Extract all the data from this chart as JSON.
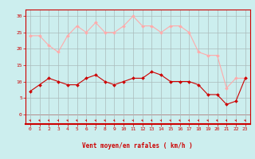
{
  "hours": [
    0,
    1,
    2,
    3,
    4,
    5,
    6,
    7,
    8,
    9,
    10,
    11,
    12,
    13,
    14,
    15,
    16,
    17,
    18,
    19,
    20,
    21,
    22,
    23
  ],
  "wind_avg": [
    7,
    9,
    11,
    10,
    9,
    9,
    11,
    12,
    10,
    9,
    10,
    11,
    11,
    13,
    12,
    10,
    10,
    10,
    9,
    6,
    6,
    3,
    4,
    11
  ],
  "wind_gust": [
    24,
    24,
    21,
    19,
    24,
    27,
    25,
    28,
    25,
    25,
    27,
    30,
    27,
    27,
    25,
    27,
    27,
    25,
    19,
    18,
    18,
    8,
    11,
    11
  ],
  "avg_color": "#cc0000",
  "gust_color": "#ffaaaa",
  "bg_color": "#cceeee",
  "grid_color": "#aabbbb",
  "xlabel": "Vent moyen/en rafales ( km/h )",
  "xlabel_color": "#cc0000",
  "yticks": [
    0,
    5,
    10,
    15,
    20,
    25,
    30
  ],
  "ylim": [
    -3,
    32
  ],
  "xlim": [
    -0.5,
    23.5
  ],
  "tick_color": "#cc0000",
  "spine_color": "#cc0000",
  "tick_fontsize": 4.5,
  "xlabel_fontsize": 5.5
}
